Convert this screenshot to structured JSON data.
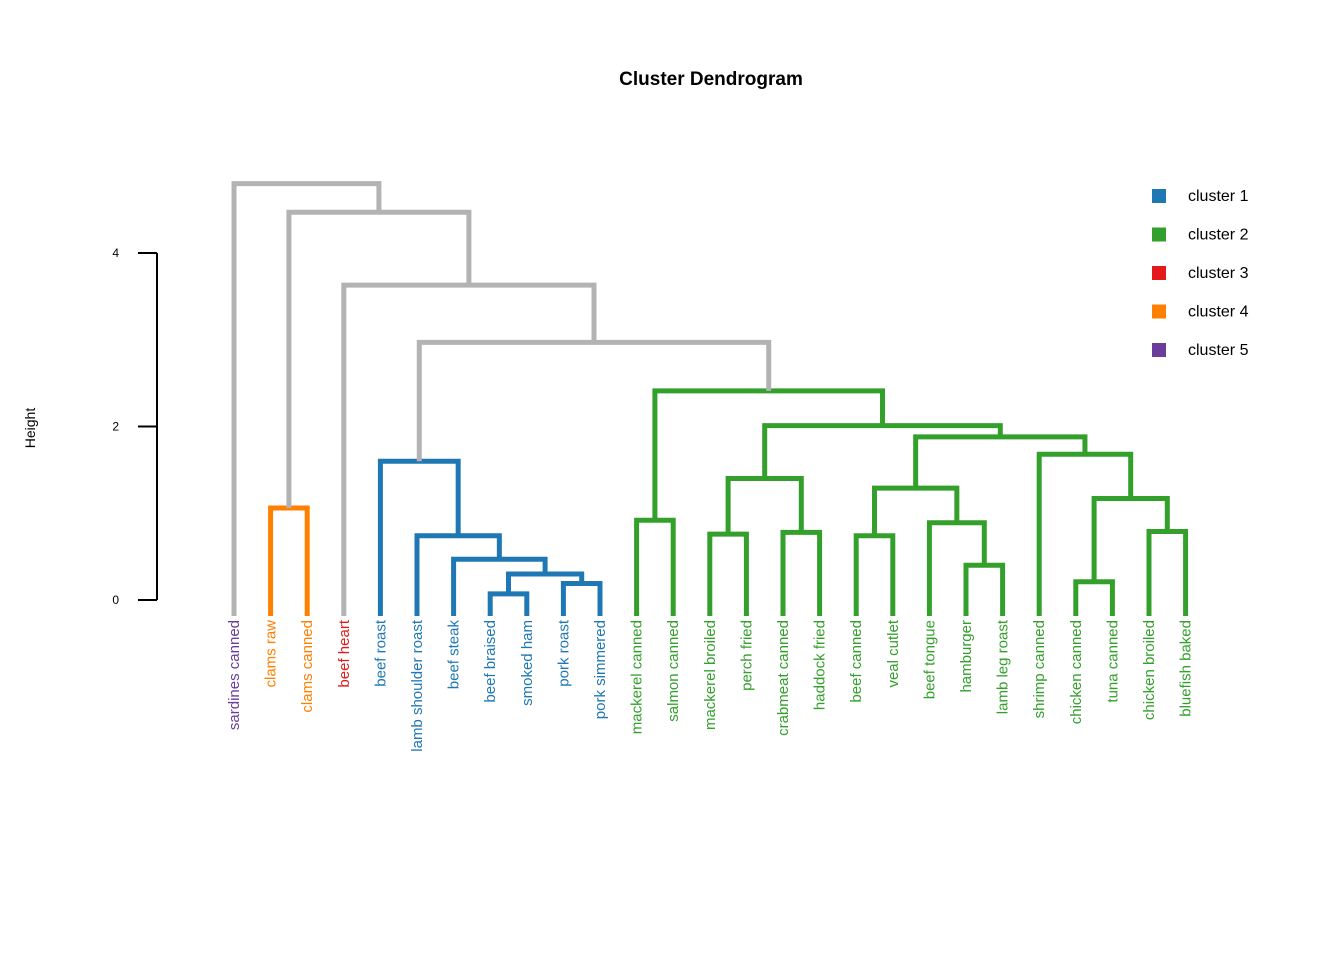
{
  "chart_data": {
    "type": "dendrogram",
    "title": "Cluster Dendrogram",
    "ylabel": "Height",
    "ylim": [
      0,
      4
    ],
    "yticks": [
      0,
      2,
      4
    ],
    "branch_color": "#b3b3b3",
    "leaves": [
      {
        "label": "sardines canned",
        "cluster": 5
      },
      {
        "label": "clams raw",
        "cluster": 4
      },
      {
        "label": "clams canned",
        "cluster": 4
      },
      {
        "label": "beef heart",
        "cluster": 3
      },
      {
        "label": "beef roast",
        "cluster": 1
      },
      {
        "label": "lamb shoulder roast",
        "cluster": 1
      },
      {
        "label": "beef steak",
        "cluster": 1
      },
      {
        "label": "beef braised",
        "cluster": 1
      },
      {
        "label": "smoked ham",
        "cluster": 1
      },
      {
        "label": "pork roast",
        "cluster": 1
      },
      {
        "label": "pork simmered",
        "cluster": 1
      },
      {
        "label": "mackerel canned",
        "cluster": 2
      },
      {
        "label": "salmon canned",
        "cluster": 2
      },
      {
        "label": "mackerel broiled",
        "cluster": 2
      },
      {
        "label": "perch fried",
        "cluster": 2
      },
      {
        "label": "crabmeat canned",
        "cluster": 2
      },
      {
        "label": "haddock fried",
        "cluster": 2
      },
      {
        "label": "beef canned",
        "cluster": 2
      },
      {
        "label": "veal cutlet",
        "cluster": 2
      },
      {
        "label": "beef tongue",
        "cluster": 2
      },
      {
        "label": "hamburger",
        "cluster": 2
      },
      {
        "label": "lamb leg roast",
        "cluster": 2
      },
      {
        "label": "shrimp canned",
        "cluster": 2
      },
      {
        "label": "chicken canned",
        "cluster": 2
      },
      {
        "label": "tuna canned",
        "cluster": 2
      },
      {
        "label": "chicken broiled",
        "cluster": 2
      },
      {
        "label": "bluefish baked",
        "cluster": 2
      }
    ],
    "merges": [
      {
        "a": "L7",
        "b": "L8",
        "height": 0.07,
        "cluster": 1
      },
      {
        "a": "L9",
        "b": "L10",
        "height": 0.19,
        "cluster": 1
      },
      {
        "a": "M0",
        "b": "M1",
        "height": 0.3,
        "cluster": 1
      },
      {
        "a": "L6",
        "b": "M2",
        "height": 0.47,
        "cluster": 1
      },
      {
        "a": "L5",
        "b": "M3",
        "height": 0.74,
        "cluster": 1
      },
      {
        "a": "L4",
        "b": "M4",
        "height": 1.6,
        "cluster": 1
      },
      {
        "a": "L1",
        "b": "L2",
        "height": 1.06,
        "cluster": 4
      },
      {
        "a": "L11",
        "b": "L12",
        "height": 0.92,
        "cluster": 2
      },
      {
        "a": "L13",
        "b": "L14",
        "height": 0.76,
        "cluster": 2
      },
      {
        "a": "L15",
        "b": "L16",
        "height": 0.78,
        "cluster": 2
      },
      {
        "a": "M8",
        "b": "M9",
        "height": 1.4,
        "cluster": 2
      },
      {
        "a": "L17",
        "b": "L18",
        "height": 0.74,
        "cluster": 2
      },
      {
        "a": "L20",
        "b": "L21",
        "height": 0.4,
        "cluster": 2
      },
      {
        "a": "L19",
        "b": "M12",
        "height": 0.89,
        "cluster": 2
      },
      {
        "a": "M11",
        "b": "M13",
        "height": 1.29,
        "cluster": 2
      },
      {
        "a": "L23",
        "b": "L24",
        "height": 0.21,
        "cluster": 2
      },
      {
        "a": "L25",
        "b": "L26",
        "height": 0.79,
        "cluster": 2
      },
      {
        "a": "M15",
        "b": "M16",
        "height": 1.17,
        "cluster": 2
      },
      {
        "a": "L22",
        "b": "M17",
        "height": 1.68,
        "cluster": 2
      },
      {
        "a": "M14",
        "b": "M18",
        "height": 1.88,
        "cluster": 2
      },
      {
        "a": "M10",
        "b": "M19",
        "height": 2.01,
        "cluster": 2
      },
      {
        "a": "M7",
        "b": "M20",
        "height": 2.41,
        "cluster": 2
      },
      {
        "a": "M5",
        "b": "M21",
        "height": 2.97,
        "cluster": 0
      },
      {
        "a": "L3",
        "b": "M22",
        "height": 3.63,
        "cluster": 0
      },
      {
        "a": "M6",
        "b": "M23",
        "height": 4.47,
        "cluster": 0
      },
      {
        "a": "L0",
        "b": "M24",
        "height": 4.8,
        "cluster": 0
      }
    ],
    "legend": {
      "position": "top-right",
      "entries": [
        {
          "label": "cluster 1",
          "color": "#1f78b4"
        },
        {
          "label": "cluster 2",
          "color": "#33a02c"
        },
        {
          "label": "cluster 3",
          "color": "#e31a1c"
        },
        {
          "label": "cluster 4",
          "color": "#ff7f00"
        },
        {
          "label": "cluster 5",
          "color": "#6a3d9a"
        }
      ]
    }
  }
}
